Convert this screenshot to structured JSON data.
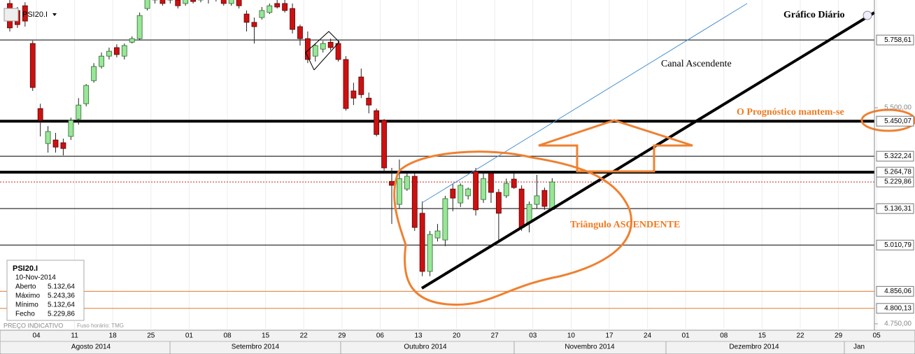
{
  "chart_data": {
    "type": "candlestick",
    "title": "Gráfico Diário",
    "series": [
      {
        "name": "PSI20.I",
        "up_color": "#99e699",
        "down_color": "#cc1111",
        "x": [
          "2014-08-01",
          "2014-08-04",
          "2014-08-05",
          "2014-08-06",
          "2014-08-07",
          "2014-08-08",
          "2014-08-11",
          "2014-08-12",
          "2014-08-13",
          "2014-08-14",
          "2014-08-15",
          "2014-08-18",
          "2014-08-19",
          "2014-08-20",
          "2014-08-21",
          "2014-08-22",
          "2014-08-25",
          "2014-08-26",
          "2014-08-27",
          "2014-08-28",
          "2014-08-29",
          "2014-09-01",
          "2014-09-02",
          "2014-09-03",
          "2014-09-04",
          "2014-09-05",
          "2014-09-08",
          "2014-09-09",
          "2014-09-10",
          "2014-09-11",
          "2014-09-12",
          "2014-09-15",
          "2014-09-16",
          "2014-09-17",
          "2014-09-18",
          "2014-09-19",
          "2014-09-22",
          "2014-09-23",
          "2014-09-24",
          "2014-09-25",
          "2014-09-26",
          "2014-09-29",
          "2014-09-30",
          "2014-10-01",
          "2014-10-02",
          "2014-10-03",
          "2014-10-06",
          "2014-10-07",
          "2014-10-08",
          "2014-10-09",
          "2014-10-10",
          "2014-10-13",
          "2014-10-14",
          "2014-10-15",
          "2014-10-16",
          "2014-10-17",
          "2014-10-20",
          "2014-10-21",
          "2014-10-22",
          "2014-10-23",
          "2014-10-24",
          "2014-10-27",
          "2014-10-28",
          "2014-10-29",
          "2014-10-30",
          "2014-10-31",
          "2014-11-03",
          "2014-11-04",
          "2014-11-05",
          "2014-11-06",
          "2014-11-07",
          "2014-11-10"
        ],
        "open": [
          5903,
          5875,
          5894,
          5745,
          5497,
          5368,
          5381,
          5371,
          5394,
          5458,
          5515,
          5602,
          5656,
          5696,
          5729,
          5696,
          5750,
          5764,
          5883,
          5917,
          5931,
          5931,
          5917,
          5903,
          5931,
          5917,
          5939,
          5922,
          5939,
          5903,
          5922,
          5861,
          5828,
          5847,
          5867,
          5903,
          5903,
          5883,
          5811,
          5764,
          5696,
          5723,
          5750,
          5745,
          5683,
          5563,
          5616,
          5536,
          5489,
          5453,
          5232,
          5151,
          5205,
          5250,
          5120,
          4922,
          5035,
          5028,
          5205,
          5156,
          5181,
          5267,
          5168,
          5260,
          5193,
          5181,
          5240,
          5205,
          5088,
          5151,
          5200,
          5132.64
        ],
        "high": [
          5931,
          5889,
          5908,
          5756,
          5515,
          5432,
          5407,
          5386,
          5463,
          5536,
          5589,
          5669,
          5710,
          5729,
          5742,
          5745,
          5773,
          5867,
          5931,
          5945,
          5939,
          5945,
          5925,
          5931,
          5945,
          5945,
          5951,
          5945,
          5951,
          5931,
          5931,
          5875,
          5847,
          5889,
          5903,
          5931,
          5917,
          5903,
          5819,
          5792,
          5745,
          5755,
          5764,
          5756,
          5696,
          5594,
          5648,
          5557,
          5497,
          5458,
          5280,
          5310,
          5260,
          5260,
          5161,
          5059,
          5083,
          5181,
          5225,
          5225,
          5210,
          5280,
          5267,
          5267,
          5205,
          5242,
          5260,
          5218,
          5161,
          5255,
          5210,
          5243.36
        ],
        "low": [
          5792,
          5806,
          5811,
          5563,
          5394,
          5335,
          5335,
          5325,
          5381,
          5437,
          5505,
          5594,
          5648,
          5683,
          5691,
          5683,
          5745,
          5759,
          5875,
          5903,
          5894,
          5903,
          5883,
          5894,
          5903,
          5908,
          5903,
          5911,
          5894,
          5894,
          5883,
          5792,
          5745,
          5839,
          5861,
          5883,
          5867,
          5784,
          5737,
          5669,
          5675,
          5710,
          5718,
          5675,
          5489,
          5510,
          5536,
          5479,
          5394,
          5267,
          5083,
          5137,
          5198,
          5059,
          4906,
          4906,
          5023,
          5007,
          5127,
          5142,
          5168,
          5112,
          5156,
          5156,
          5028,
          5173,
          5205,
          5059,
          5054,
          5137,
          5132,
          5132.64
        ],
        "close": [
          5806,
          5819,
          5833,
          5576,
          5453,
          5412,
          5355,
          5350,
          5453,
          5510,
          5584,
          5656,
          5696,
          5715,
          5702,
          5737,
          5764,
          5855,
          5922,
          5931,
          5903,
          5917,
          5894,
          5922,
          5911,
          5939,
          5922,
          5939,
          5903,
          5922,
          5894,
          5828,
          5811,
          5875,
          5894,
          5889,
          5875,
          5800,
          5764,
          5683,
          5737,
          5745,
          5729,
          5683,
          5497,
          5536,
          5549,
          5510,
          5401,
          5280,
          5218,
          5242,
          5250,
          5071,
          4922,
          5047,
          5059,
          5171,
          5173,
          5218,
          5205,
          5132,
          5242,
          5193,
          5120,
          5225,
          5210,
          5071,
          5151,
          5181,
          5144,
          5229.86
        ]
      }
    ],
    "log_scale": true,
    "ylim": [
      4734,
      5917
    ],
    "yticks": [
      {
        "value": 5758.61,
        "label": "5.758,61",
        "line_color": "#000000",
        "line_width": 1
      },
      {
        "value": 5500,
        "label": "5.500,00"
      },
      {
        "value": 5450.07,
        "label": "5.450,07",
        "line_color": "#000000",
        "line_width": 4
      },
      {
        "value": 5322.24,
        "label": "5.322,24",
        "line_color": "#000000",
        "line_width": 1
      },
      {
        "value": 5264.78,
        "label": "5.264,78",
        "line_color": "#000000",
        "line_width": 4
      },
      {
        "value": 5229.86,
        "label": "5.229,86",
        "line_color": "#cc2222",
        "line_width": 1,
        "line_dash": true
      },
      {
        "value": 5136.31,
        "label": "5.136,31",
        "line_color": "#000000",
        "line_width": 1
      },
      {
        "value": 5010.79,
        "label": "5.010,79",
        "line_color": "#000000",
        "line_width": 1
      },
      {
        "value": 4856.06,
        "label": "4.856,06",
        "line_color": "#e07a30",
        "line_width": 1
      },
      {
        "value": 4800.13,
        "label": "4.800,13",
        "line_color": "#e07a30",
        "line_width": 1
      },
      {
        "value": 4750,
        "label": "4.750,00"
      }
    ],
    "week_labels": [
      "04",
      "11",
      "18",
      "25",
      "01",
      "08",
      "15",
      "22",
      "29",
      "06",
      "13",
      "20",
      "27",
      "03",
      "10",
      "17",
      "24",
      "01",
      "08",
      "15",
      "22",
      "29",
      "05"
    ],
    "month_labels": [
      "Agosto 2014",
      "Setembro 2014",
      "Outubro 2014",
      "Novembro 2014",
      "Dezembro 2014",
      "Jan"
    ],
    "annotations": [
      "Canal Ascendente",
      "O Prognóstico mantem-se",
      "Triângulo ASCENDENTE"
    ],
    "footer": [
      "PREÇO INDICATIVO",
      "Fuso horário: TMG"
    ],
    "info_box": {
      "title": "PSI20.I",
      "date": "10-Nov-2014",
      "rows": [
        {
          "label": "Aberto",
          "value": "5.132,64"
        },
        {
          "label": "Máximo",
          "value": "5.243,36"
        },
        {
          "label": "Mínimo",
          "value": "5.132,64"
        },
        {
          "label": "Fecho",
          "value": "5.229,86"
        }
      ]
    }
  }
}
